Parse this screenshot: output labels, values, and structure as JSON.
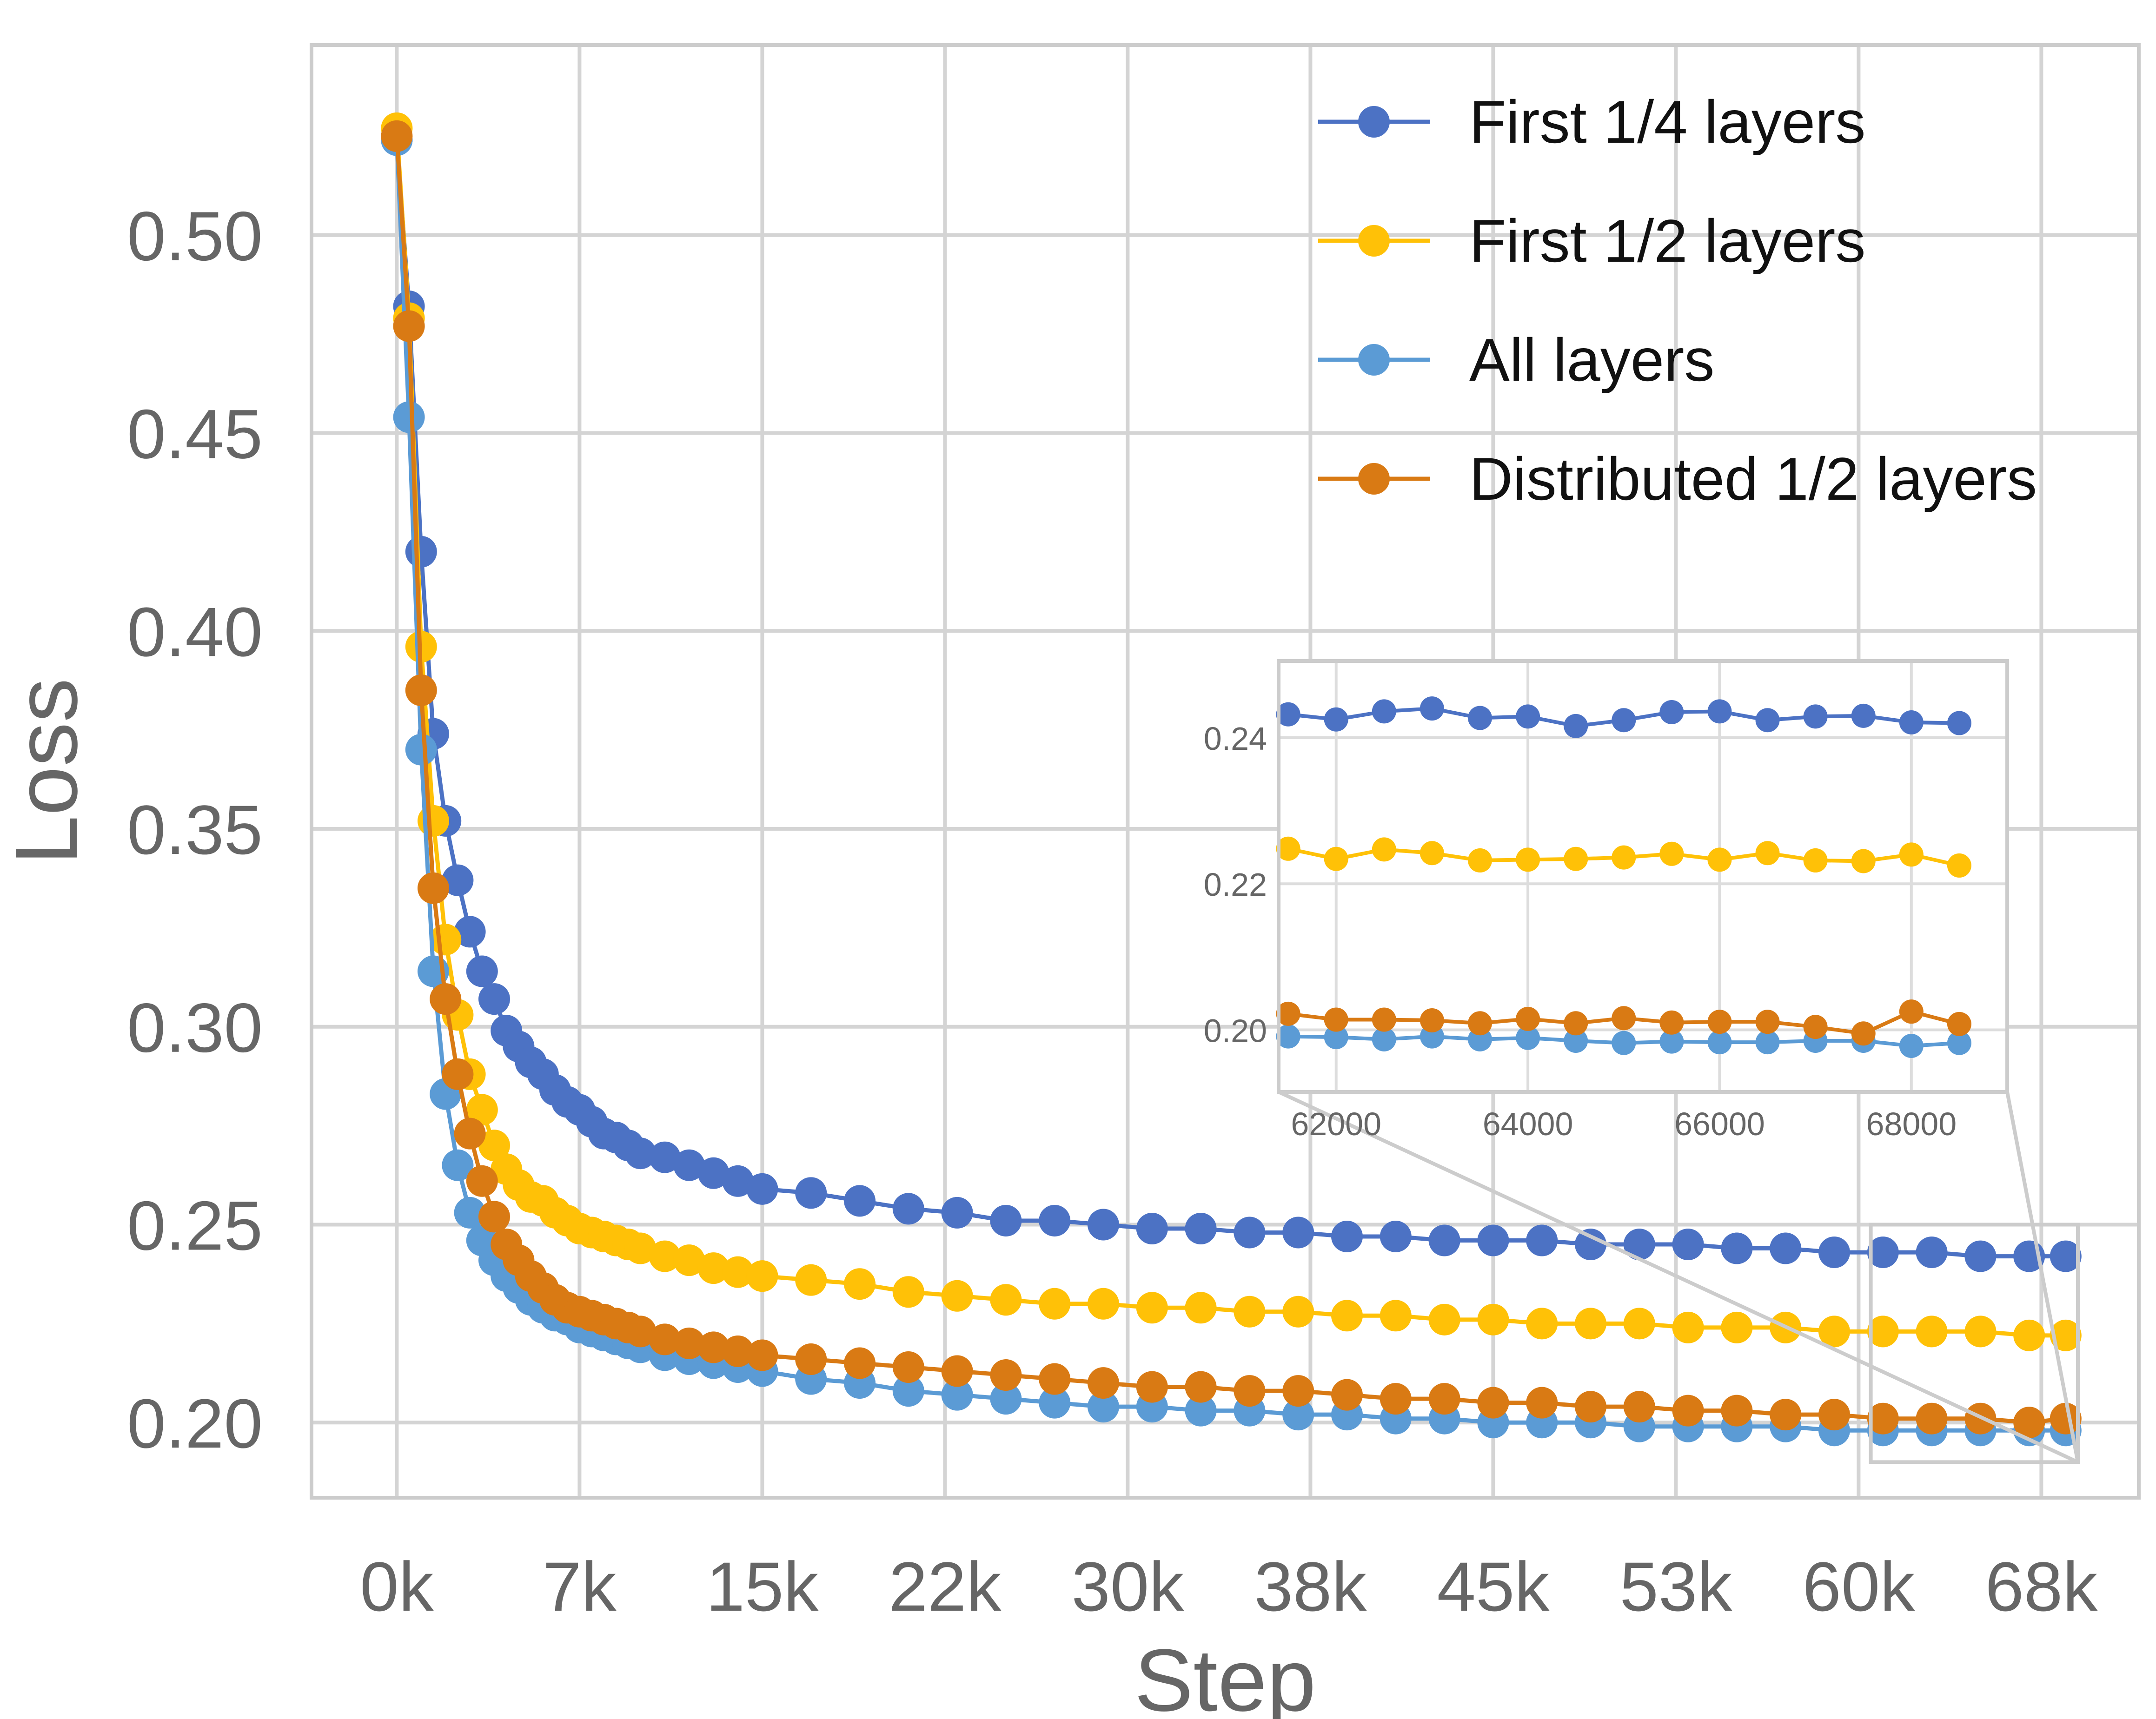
{
  "chart_data": [
    {
      "type": "line",
      "role": "main",
      "title": "",
      "xlabel": "Step",
      "ylabel": "Loss",
      "xlim": [
        -3500,
        71500
      ],
      "ylim": [
        0.181,
        0.548
      ],
      "x_tick_labels": [
        "0k",
        "7k",
        "15k",
        "22k",
        "30k",
        "38k",
        "45k",
        "53k",
        "60k",
        "68k"
      ],
      "x_tick_values": [
        0,
        7500,
        15000,
        22500,
        30000,
        37500,
        45000,
        52500,
        60000,
        67500
      ],
      "y_tick_labels": [
        "0.20",
        "0.25",
        "0.30",
        "0.35",
        "0.40",
        "0.45",
        "0.50"
      ],
      "y_tick_values": [
        0.2,
        0.25,
        0.3,
        0.35,
        0.4,
        0.45,
        0.5
      ],
      "grid": true,
      "legend_position": "top-right",
      "series": [
        {
          "name": "First 1/4 layers",
          "color": "#4c72c4",
          "x": [
            0,
            500,
            1000,
            1500,
            2000,
            2500,
            3000,
            3500,
            4000,
            4500,
            5000,
            5500,
            6000,
            6500,
            7000,
            7500,
            8000,
            8500,
            9000,
            9500,
            10000,
            11000,
            12000,
            13000,
            14000,
            15000,
            17000,
            19000,
            21000,
            23000,
            25000,
            27000,
            29000,
            31000,
            33000,
            35000,
            37000,
            39000,
            41000,
            43000,
            45000,
            47000,
            49000,
            51000,
            53000,
            55000,
            57000,
            59000,
            61000,
            63000,
            65000,
            67000,
            68500
          ],
          "y": [
            0.524,
            0.482,
            0.42,
            0.374,
            0.352,
            0.337,
            0.324,
            0.314,
            0.307,
            0.299,
            0.295,
            0.291,
            0.288,
            0.284,
            0.281,
            0.279,
            0.276,
            0.273,
            0.272,
            0.27,
            0.268,
            0.267,
            0.265,
            0.263,
            0.261,
            0.259,
            0.258,
            0.256,
            0.254,
            0.253,
            0.251,
            0.251,
            0.25,
            0.249,
            0.249,
            0.248,
            0.248,
            0.247,
            0.247,
            0.246,
            0.246,
            0.246,
            0.245,
            0.245,
            0.245,
            0.244,
            0.244,
            0.243,
            0.243,
            0.243,
            0.242,
            0.242,
            0.242
          ]
        },
        {
          "name": "First 1/2 layers",
          "color": "#ffc107",
          "x": [
            0,
            500,
            1000,
            1500,
            2000,
            2500,
            3000,
            3500,
            4000,
            4500,
            5000,
            5500,
            6000,
            6500,
            7000,
            7500,
            8000,
            8500,
            9000,
            9500,
            10000,
            11000,
            12000,
            13000,
            14000,
            15000,
            17000,
            19000,
            21000,
            23000,
            25000,
            27000,
            29000,
            31000,
            33000,
            35000,
            37000,
            39000,
            41000,
            43000,
            45000,
            47000,
            49000,
            51000,
            53000,
            55000,
            57000,
            59000,
            61000,
            63000,
            65000,
            67000,
            68500
          ],
          "y": [
            0.527,
            0.479,
            0.396,
            0.352,
            0.322,
            0.303,
            0.288,
            0.279,
            0.27,
            0.264,
            0.26,
            0.257,
            0.256,
            0.253,
            0.251,
            0.249,
            0.248,
            0.247,
            0.246,
            0.245,
            0.244,
            0.242,
            0.241,
            0.239,
            0.238,
            0.237,
            0.236,
            0.235,
            0.233,
            0.232,
            0.231,
            0.23,
            0.23,
            0.229,
            0.229,
            0.228,
            0.228,
            0.227,
            0.227,
            0.226,
            0.226,
            0.225,
            0.225,
            0.225,
            0.224,
            0.224,
            0.224,
            0.223,
            0.223,
            0.223,
            0.223,
            0.222,
            0.222
          ]
        },
        {
          "name": "All layers",
          "color": "#5b9bd5",
          "x": [
            0,
            500,
            1000,
            1500,
            2000,
            2500,
            3000,
            3500,
            4000,
            4500,
            5000,
            5500,
            6000,
            6500,
            7000,
            7500,
            8000,
            8500,
            9000,
            9500,
            10000,
            11000,
            12000,
            13000,
            14000,
            15000,
            17000,
            19000,
            21000,
            23000,
            25000,
            27000,
            29000,
            31000,
            33000,
            35000,
            37000,
            39000,
            41000,
            43000,
            45000,
            47000,
            49000,
            51000,
            53000,
            55000,
            57000,
            59000,
            61000,
            63000,
            65000,
            67000,
            68500
          ],
          "y": [
            0.524,
            0.454,
            0.37,
            0.314,
            0.283,
            0.265,
            0.253,
            0.246,
            0.241,
            0.237,
            0.234,
            0.231,
            0.229,
            0.227,
            0.226,
            0.224,
            0.223,
            0.222,
            0.221,
            0.22,
            0.219,
            0.217,
            0.216,
            0.215,
            0.214,
            0.213,
            0.211,
            0.21,
            0.208,
            0.207,
            0.206,
            0.205,
            0.204,
            0.204,
            0.203,
            0.203,
            0.202,
            0.202,
            0.201,
            0.201,
            0.2,
            0.2,
            0.2,
            0.199,
            0.199,
            0.199,
            0.199,
            0.198,
            0.198,
            0.198,
            0.198,
            0.198,
            0.198
          ]
        },
        {
          "name": "Distributed 1/2 layers",
          "color": "#d97a14",
          "x": [
            0,
            500,
            1000,
            1500,
            2000,
            2500,
            3000,
            3500,
            4000,
            4500,
            5000,
            5500,
            6000,
            6500,
            7000,
            7500,
            8000,
            8500,
            9000,
            9500,
            10000,
            11000,
            12000,
            13000,
            14000,
            15000,
            17000,
            19000,
            21000,
            23000,
            25000,
            27000,
            29000,
            31000,
            33000,
            35000,
            37000,
            39000,
            41000,
            43000,
            45000,
            47000,
            49000,
            51000,
            53000,
            55000,
            57000,
            59000,
            61000,
            63000,
            65000,
            67000,
            68500
          ],
          "y": [
            0.525,
            0.477,
            0.385,
            0.335,
            0.307,
            0.288,
            0.273,
            0.261,
            0.252,
            0.245,
            0.241,
            0.237,
            0.234,
            0.231,
            0.229,
            0.228,
            0.227,
            0.226,
            0.225,
            0.224,
            0.223,
            0.221,
            0.22,
            0.219,
            0.218,
            0.217,
            0.216,
            0.215,
            0.214,
            0.213,
            0.212,
            0.211,
            0.21,
            0.209,
            0.209,
            0.208,
            0.208,
            0.207,
            0.206,
            0.206,
            0.205,
            0.205,
            0.204,
            0.204,
            0.203,
            0.203,
            0.202,
            0.202,
            0.201,
            0.201,
            0.201,
            0.2,
            0.201
          ]
        }
      ]
    },
    {
      "type": "line",
      "role": "inset-zoom",
      "title": "",
      "xlim": [
        61400,
        69000
      ],
      "ylim": [
        0.1915,
        0.2505
      ],
      "zoom_region_main": {
        "x": [
          60500,
          69000
        ],
        "y": [
          0.19,
          0.25
        ]
      },
      "x_tick_labels": [
        "62000",
        "64000",
        "66000",
        "68000"
      ],
      "x_tick_values": [
        62000,
        64000,
        66000,
        68000
      ],
      "y_tick_labels": [
        "0.20",
        "0.22",
        "0.24"
      ],
      "y_tick_values": [
        0.2,
        0.22,
        0.24
      ],
      "grid": true,
      "series": [
        {
          "name": "First 1/4 layers",
          "color": "#4c72c4",
          "x": [
            61500,
            62000,
            62500,
            63000,
            63500,
            64000,
            64500,
            65000,
            65500,
            66000,
            66500,
            67000,
            67500,
            68000,
            68500
          ],
          "y": [
            0.2432,
            0.2425,
            0.2436,
            0.244,
            0.2427,
            0.2429,
            0.2416,
            0.2424,
            0.2435,
            0.2436,
            0.2424,
            0.2429,
            0.243,
            0.2421,
            0.242
          ]
        },
        {
          "name": "First 1/2 layers",
          "color": "#ffc107",
          "x": [
            61500,
            62000,
            62500,
            63000,
            63500,
            64000,
            64500,
            65000,
            65500,
            66000,
            66500,
            67000,
            67500,
            68000,
            68500
          ],
          "y": [
            0.2248,
            0.2234,
            0.2247,
            0.2242,
            0.2232,
            0.2233,
            0.2234,
            0.2236,
            0.2241,
            0.2233,
            0.2242,
            0.2232,
            0.2231,
            0.224,
            0.2225
          ]
        },
        {
          "name": "All layers",
          "color": "#5b9bd5",
          "x": [
            61500,
            62000,
            62500,
            63000,
            63500,
            64000,
            64500,
            65000,
            65500,
            66000,
            66500,
            67000,
            67500,
            68000,
            68500
          ],
          "y": [
            0.1991,
            0.199,
            0.1987,
            0.1991,
            0.1987,
            0.1989,
            0.1985,
            0.1982,
            0.1984,
            0.1983,
            0.1983,
            0.1985,
            0.1985,
            0.1978,
            0.1982
          ]
        },
        {
          "name": "Distributed 1/2 layers",
          "color": "#d97a14",
          "x": [
            61500,
            62000,
            62500,
            63000,
            63500,
            64000,
            64500,
            65000,
            65500,
            66000,
            66500,
            67000,
            67500,
            68000,
            68500
          ],
          "y": [
            0.2022,
            0.2014,
            0.2014,
            0.2013,
            0.2009,
            0.2015,
            0.2009,
            0.2016,
            0.201,
            0.2011,
            0.2011,
            0.2004,
            0.1995,
            0.2025,
            0.2008
          ]
        }
      ]
    }
  ]
}
